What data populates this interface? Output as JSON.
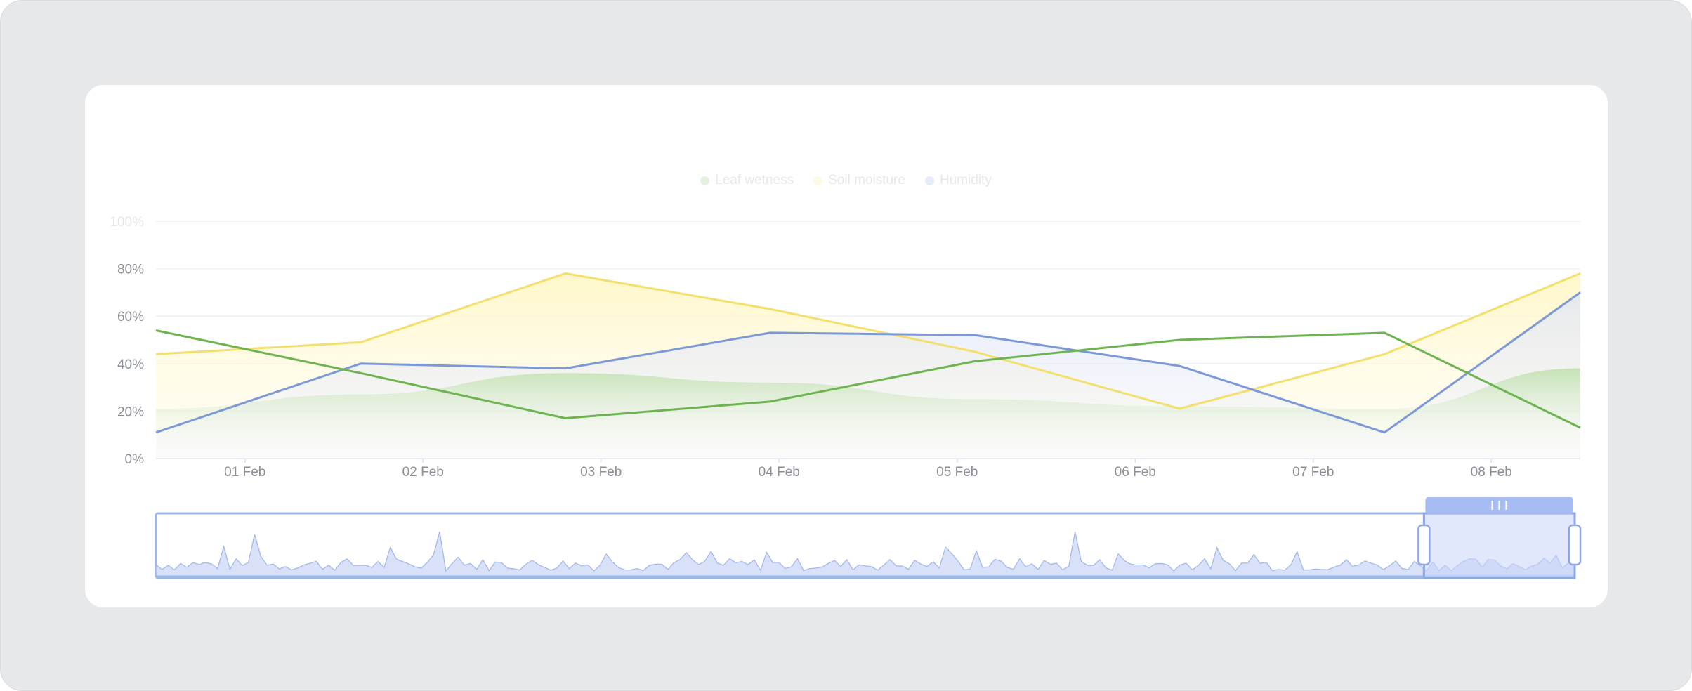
{
  "chart_data": {
    "type": "line",
    "title": "",
    "xlabel": "",
    "ylabel": "",
    "ylim": [
      0,
      100
    ],
    "y_ticks": [
      "0%",
      "20%",
      "40%",
      "60%",
      "80%",
      "100%"
    ],
    "x_tick_labels": [
      "01 Feb",
      "02 Feb",
      "03 Feb",
      "04 Feb",
      "05 Feb",
      "06 Feb",
      "07 Feb",
      "08 Feb"
    ],
    "x_range_days": [
      0,
      8
    ],
    "legend": {
      "position": "top",
      "items": [
        "Leaf wetness",
        "Soil moisture",
        "Humidity"
      ]
    },
    "series": [
      {
        "name": "Leaf wetness",
        "color": "#6db451",
        "x": [
          0,
          1.15,
          2.3,
          3.45,
          4.6,
          5.75,
          6.9,
          8.0
        ],
        "values": [
          54,
          36,
          17,
          24,
          41,
          50,
          53,
          13
        ],
        "band_values": [
          21,
          27,
          36,
          32,
          25,
          22,
          21,
          38
        ]
      },
      {
        "name": "Soil moisture",
        "color": "#f3e06c",
        "x": [
          0,
          1.15,
          2.3,
          3.45,
          4.6,
          5.75,
          6.9,
          8.0
        ],
        "values": [
          44,
          49,
          78,
          63,
          45,
          21,
          44,
          78
        ]
      },
      {
        "name": "Humidity",
        "color": "#7b98d9",
        "x": [
          0,
          1.15,
          2.3,
          3.45,
          4.6,
          5.75,
          6.9,
          8.0
        ],
        "values": [
          11,
          40,
          38,
          53,
          52,
          39,
          11,
          70
        ]
      }
    ],
    "navigator": {
      "selected_range_days": [
        7.15,
        8.0
      ],
      "handle_icon": "grip-lines-icon"
    },
    "grid": true
  }
}
